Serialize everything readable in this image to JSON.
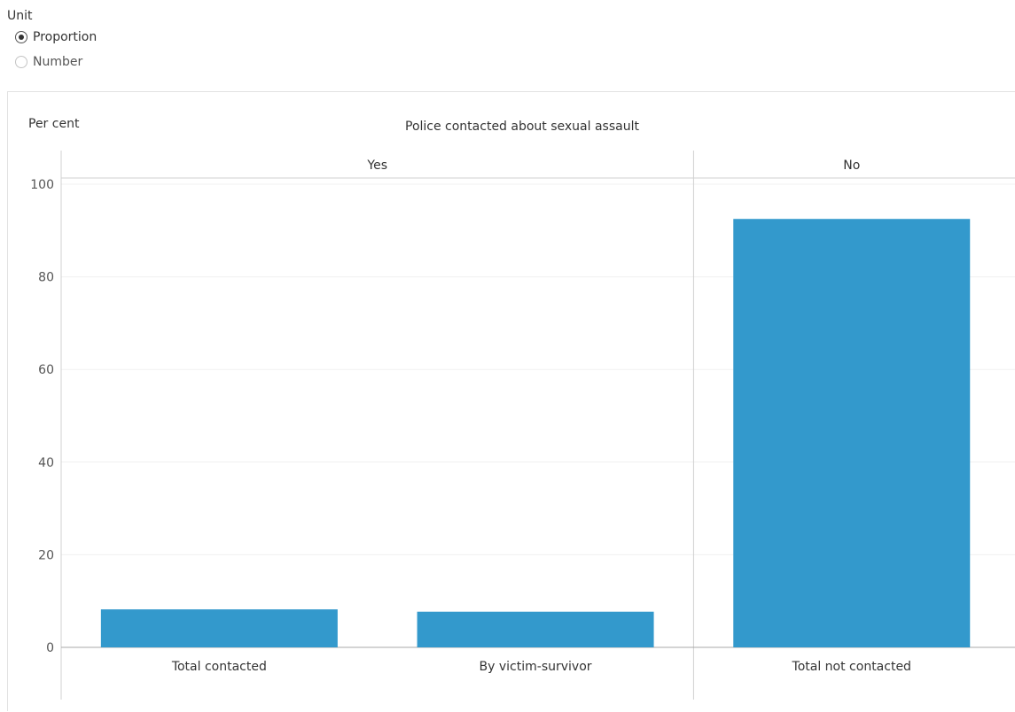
{
  "filter": {
    "title": "Unit",
    "options": [
      {
        "label": "Proportion",
        "selected": true
      },
      {
        "label": "Number",
        "selected": false
      }
    ]
  },
  "chart_data": {
    "type": "bar",
    "title": "Police contacted about sexual assault",
    "ylabel": "Per cent",
    "xlabel": "",
    "ylim": [
      0,
      100
    ],
    "yticks": [
      0,
      20,
      40,
      60,
      80,
      100
    ],
    "grid": true,
    "groups": [
      {
        "label": "Yes",
        "categories": [
          "Total contacted",
          "By victim-survivor"
        ],
        "values": [
          8.2,
          7.7
        ]
      },
      {
        "label": "No",
        "categories": [
          "Total not contacted"
        ],
        "values": [
          92.5
        ]
      }
    ],
    "bar_color": "#3399cc"
  }
}
